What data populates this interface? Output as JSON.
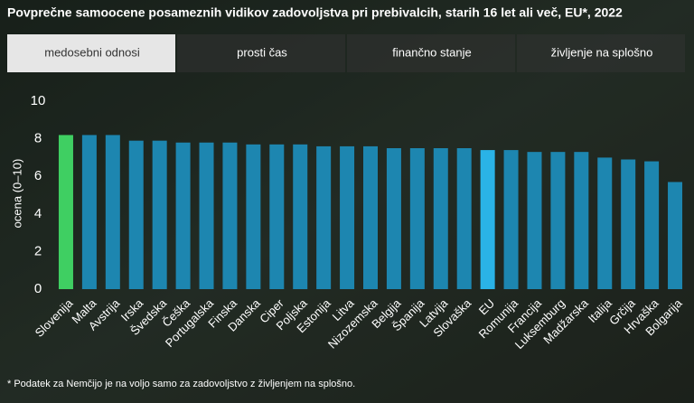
{
  "chart_data": {
    "type": "bar",
    "title": "Povprečne samoocene posameznih vidikov zadovoljstva pri prebivalcih, starih 16 let ali več, EU*, 2022",
    "tabs": [
      "medosebni odnosi",
      "prosti čas",
      "finančno stanje",
      "življenje na splošno"
    ],
    "active_tab": 0,
    "y_label": "ocena (0–10)",
    "categories": [
      "Slovenija",
      "Malta",
      "Avstrija",
      "Irska",
      "Švedska",
      "Češka",
      "Portugalska",
      "Finska",
      "Danska",
      "Ciper",
      "Poljska",
      "Estonija",
      "Litva",
      "Nizozemska",
      "Belgija",
      "Španija",
      "Latvija",
      "Slovaška",
      "EU",
      "Romunija",
      "Francija",
      "Luksemburg",
      "Madžarska",
      "Italija",
      "Grčija",
      "Hrvaška",
      "Bolgarija"
    ],
    "values": [
      8.2,
      8.2,
      8.2,
      7.9,
      7.9,
      7.8,
      7.8,
      7.8,
      7.7,
      7.7,
      7.7,
      7.6,
      7.6,
      7.6,
      7.5,
      7.5,
      7.5,
      7.5,
      7.4,
      7.4,
      7.3,
      7.3,
      7.3,
      7.0,
      6.9,
      6.8,
      5.7
    ],
    "colors": [
      "#3fcf62",
      "#1d86b0",
      "#1d86b0",
      "#1d86b0",
      "#1d86b0",
      "#1d86b0",
      "#1d86b0",
      "#1d86b0",
      "#1d86b0",
      "#1d86b0",
      "#1d86b0",
      "#1d86b0",
      "#1d86b0",
      "#1d86b0",
      "#1d86b0",
      "#1d86b0",
      "#1d86b0",
      "#1d86b0",
      "#2ab3e6",
      "#1d86b0",
      "#1d86b0",
      "#1d86b0",
      "#1d86b0",
      "#1d86b0",
      "#1d86b0",
      "#1d86b0",
      "#1d86b0"
    ],
    "ylim": [
      0,
      10
    ],
    "yticks": [
      0,
      2,
      4,
      6,
      8,
      10
    ],
    "grid": false,
    "footnote": "* Podatek za Nemčijo je na voljo samo za zadovoljstvo z življenjem na splošno."
  }
}
